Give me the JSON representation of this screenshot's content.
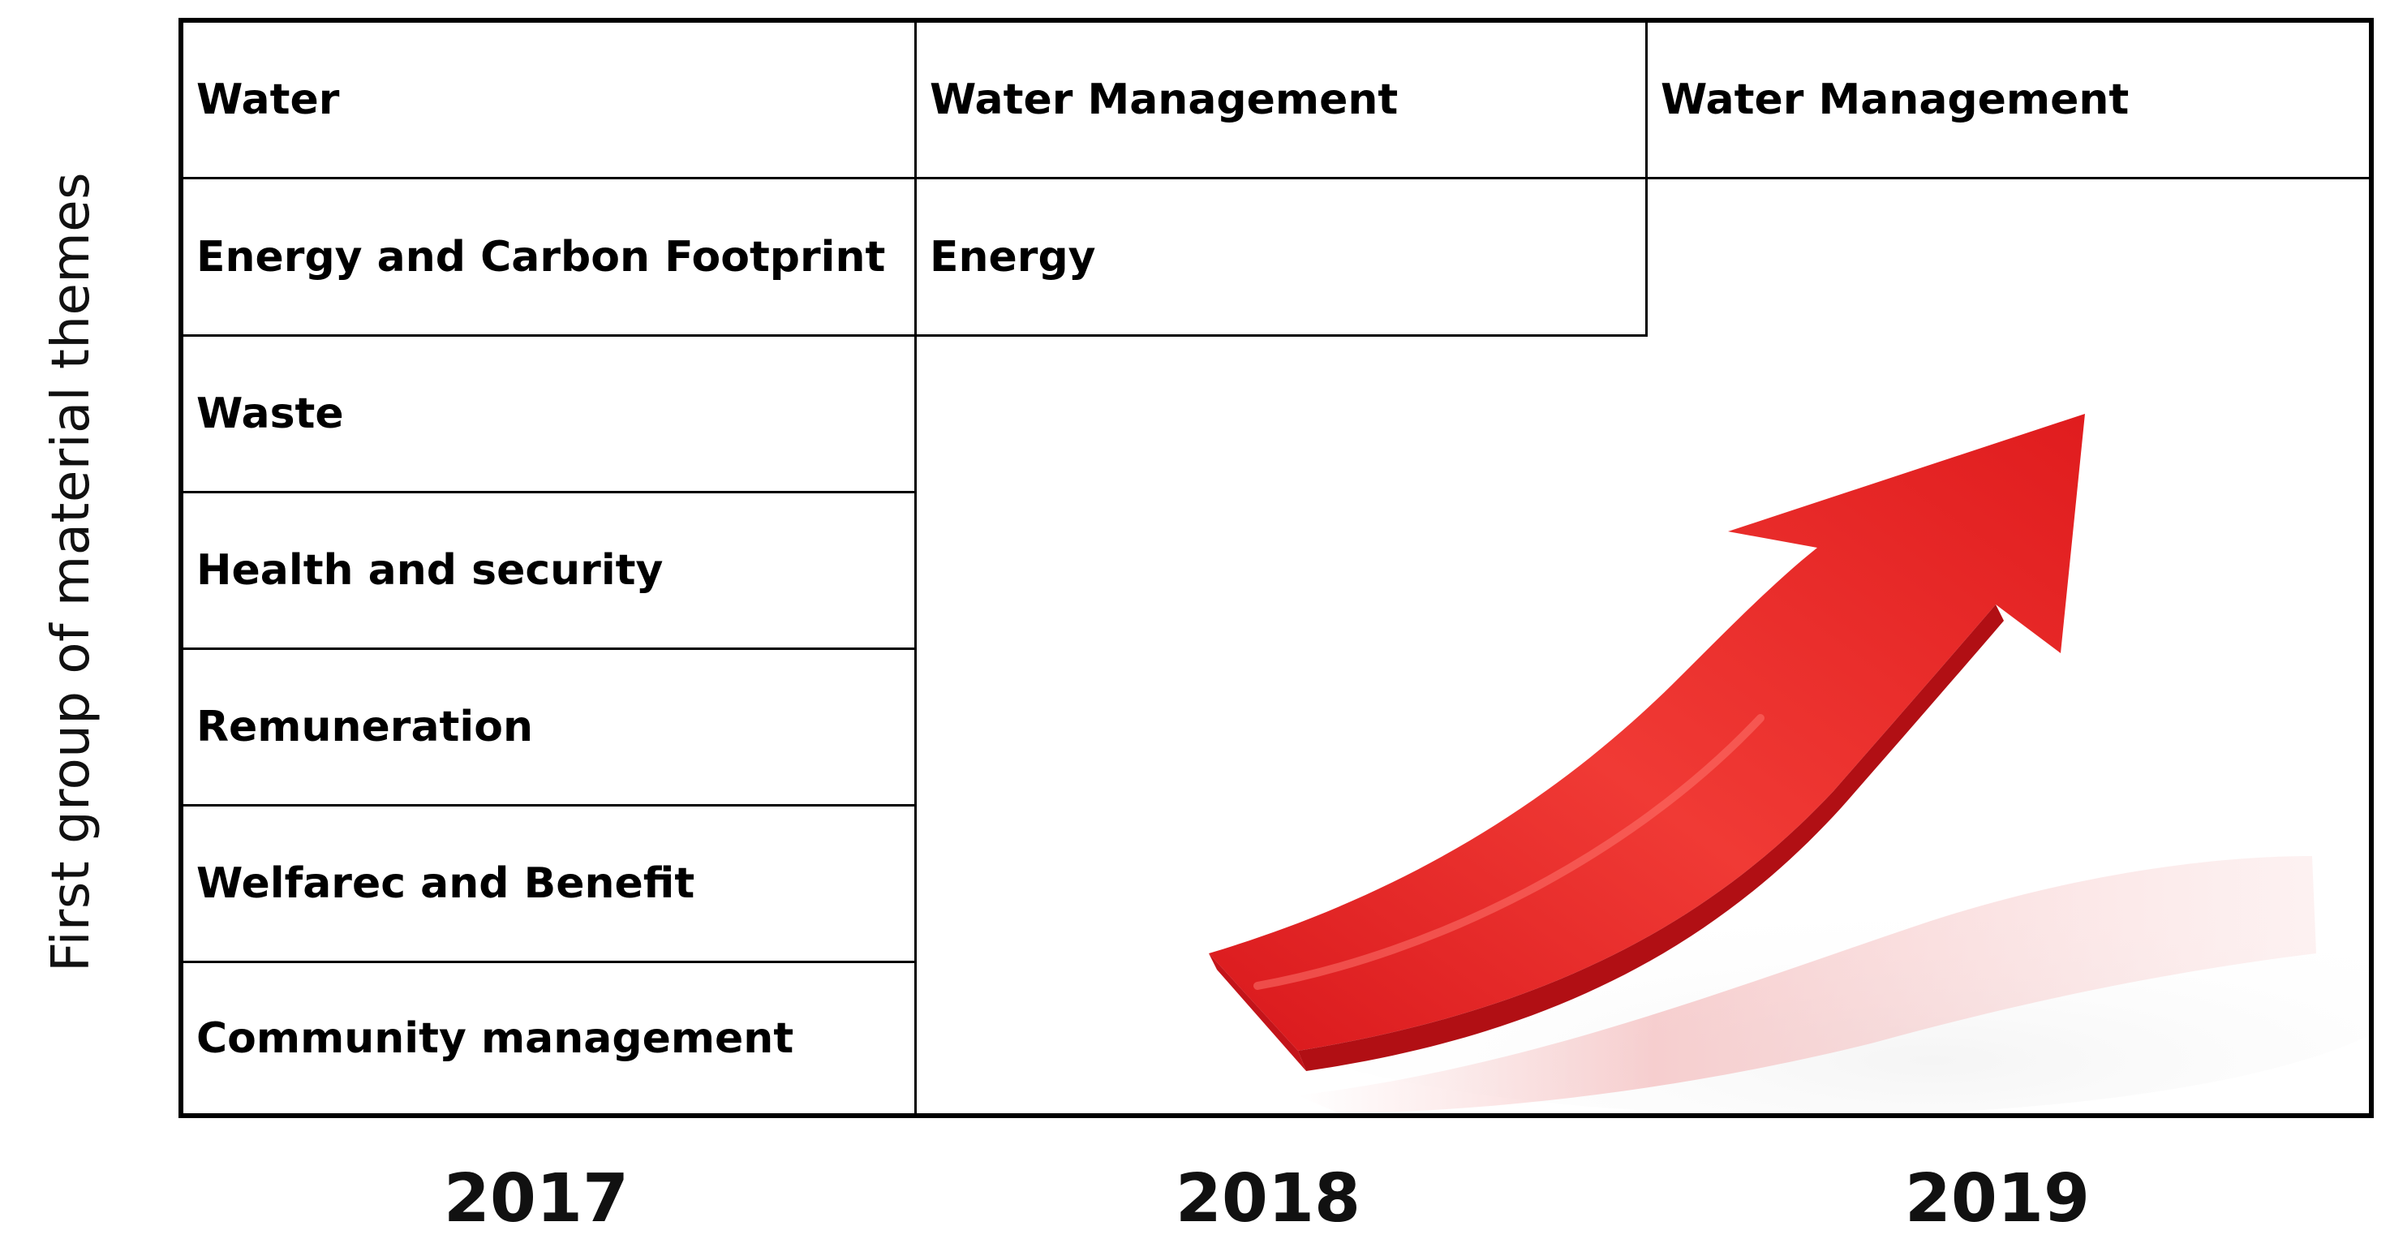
{
  "y_axis_label": "First group of material themes",
  "columns": [
    {
      "year": "2017",
      "items": [
        "Water",
        "Energy and Carbon Footprint",
        "Waste",
        "Health and security",
        "Remuneration",
        "Welfarec and Benefit",
        "Community management"
      ]
    },
    {
      "year": "2018",
      "items": [
        "Water Management",
        "Energy"
      ]
    },
    {
      "year": "2019",
      "items": [
        "Water Management"
      ]
    }
  ],
  "graphic": {
    "icon": "upward-curved-arrow-icon",
    "color": "#e8201f"
  }
}
